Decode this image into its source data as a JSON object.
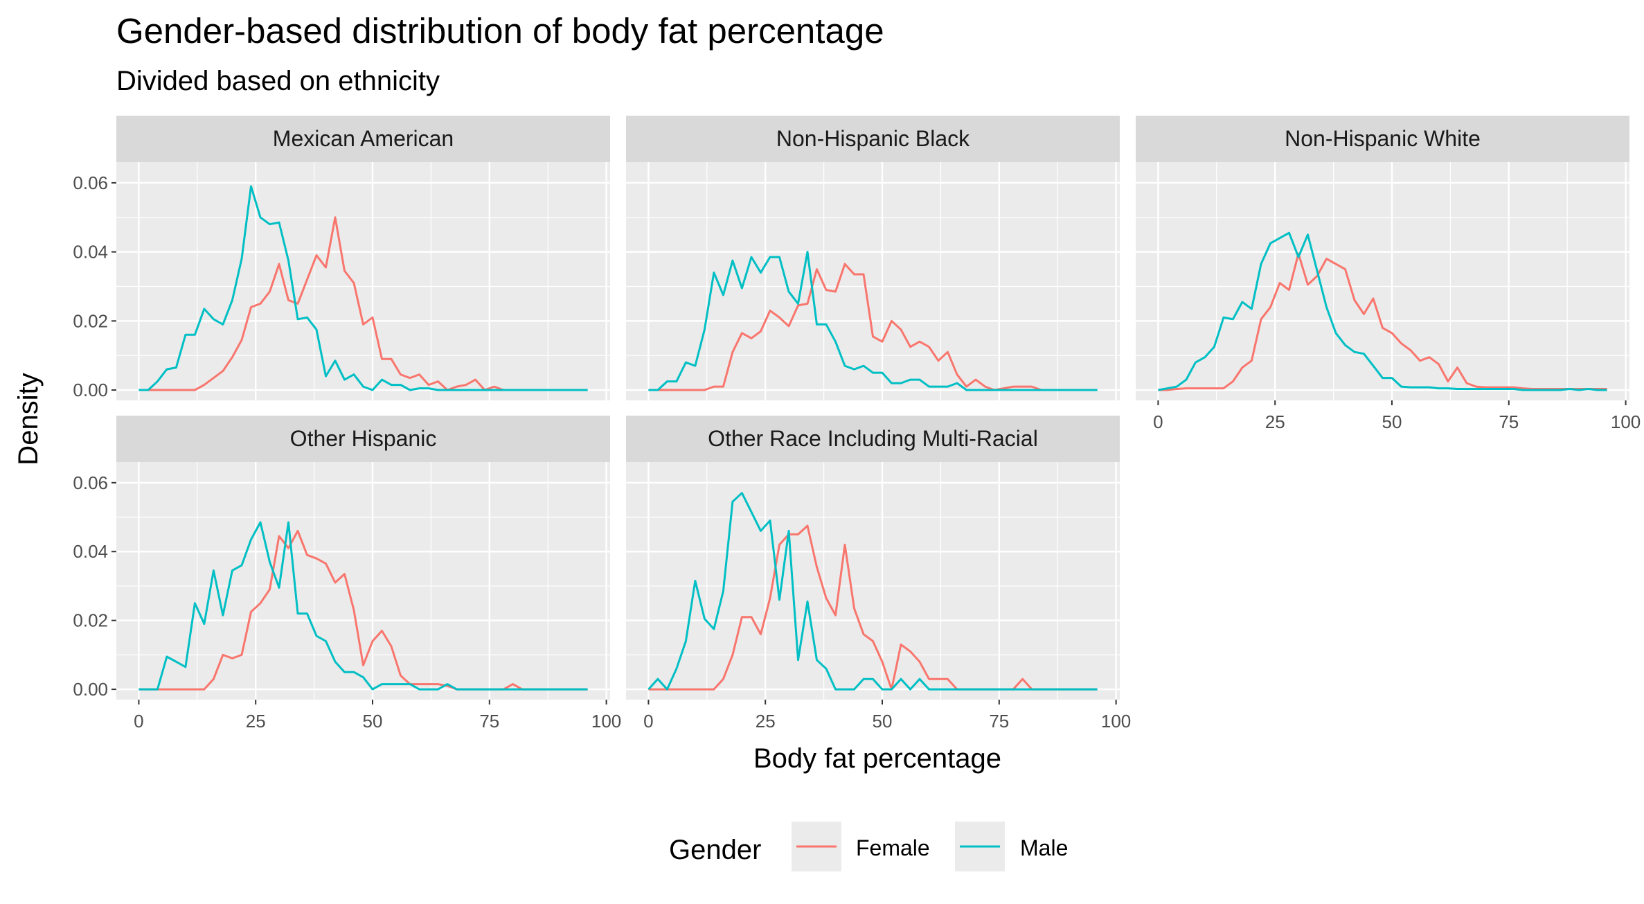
{
  "chart_data": {
    "type": "line",
    "title": "Gender-based distribution of body fat percentage",
    "subtitle": "Divided based on ethnicity",
    "xlabel": "Body fat percentage",
    "ylabel": "Density",
    "xlim": [
      0,
      100
    ],
    "ylim": [
      0,
      0.06
    ],
    "x_ticks": [
      0,
      25,
      50,
      75,
      100
    ],
    "x_tick_labels": [
      "0",
      "25",
      "50",
      "75",
      "100"
    ],
    "y_ticks": [
      0,
      0.02,
      0.04,
      0.06
    ],
    "y_tick_labels": [
      "0.00",
      "0.02",
      "0.04",
      "0.06"
    ],
    "grid": true,
    "legend": {
      "title": "Gender",
      "position": "bottom",
      "entries": [
        {
          "label": "Female",
          "color": "#F8766D"
        },
        {
          "label": "Male",
          "color": "#00BFC4"
        }
      ]
    },
    "x": [
      0,
      2,
      4,
      6,
      8,
      10,
      12,
      14,
      16,
      18,
      20,
      22,
      24,
      26,
      28,
      30,
      32,
      34,
      36,
      38,
      40,
      42,
      44,
      46,
      48,
      50,
      52,
      54,
      56,
      58,
      60,
      62,
      64,
      66,
      68,
      70,
      72,
      74,
      76,
      78,
      80,
      82,
      84,
      86,
      88,
      90,
      92,
      94,
      96
    ],
    "panels": [
      {
        "label": "Mexican American",
        "series": [
          {
            "name": "Female",
            "values": [
              0,
              0,
              0,
              0,
              0,
              0,
              0,
              0.0015,
              0.0035,
              0.0055,
              0.0095,
              0.0145,
              0.024,
              0.025,
              0.0285,
              0.0365,
              0.026,
              0.025,
              0.032,
              0.039,
              0.0355,
              0.05,
              0.0345,
              0.031,
              0.019,
              0.021,
              0.009,
              0.009,
              0.0045,
              0.0035,
              0.0045,
              0.0015,
              0.0025,
              0,
              0.001,
              0.0015,
              0.003,
              0,
              0.001,
              0,
              0,
              0,
              0,
              0,
              0,
              0,
              0,
              0,
              0
            ]
          },
          {
            "name": "Male",
            "values": [
              0,
              0,
              0.0025,
              0.006,
              0.0065,
              0.016,
              0.016,
              0.0235,
              0.0205,
              0.019,
              0.026,
              0.038,
              0.059,
              0.05,
              0.048,
              0.0485,
              0.0375,
              0.0205,
              0.021,
              0.0175,
              0.004,
              0.0085,
              0.003,
              0.0045,
              0.001,
              0,
              0.003,
              0.0015,
              0.0015,
              0,
              0.0005,
              0.0005,
              0,
              0,
              0,
              0,
              0,
              0,
              0,
              0,
              0,
              0,
              0,
              0,
              0,
              0,
              0,
              0,
              0
            ]
          }
        ]
      },
      {
        "label": "Non-Hispanic Black",
        "series": [
          {
            "name": "Female",
            "values": [
              0,
              0,
              0,
              0,
              0,
              0,
              0,
              0.001,
              0.001,
              0.011,
              0.0165,
              0.015,
              0.017,
              0.023,
              0.021,
              0.0185,
              0.0245,
              0.025,
              0.035,
              0.029,
              0.0285,
              0.0365,
              0.0335,
              0.0335,
              0.0155,
              0.014,
              0.02,
              0.0175,
              0.0125,
              0.014,
              0.0125,
              0.0085,
              0.011,
              0.0045,
              0.001,
              0.003,
              0.001,
              0,
              0.0005,
              0.001,
              0.001,
              0.001,
              0,
              0,
              0,
              0,
              0,
              0,
              0
            ]
          },
          {
            "name": "Male",
            "values": [
              0,
              0,
              0.0025,
              0.0025,
              0.008,
              0.007,
              0.0175,
              0.034,
              0.0275,
              0.0375,
              0.0295,
              0.0385,
              0.034,
              0.0385,
              0.0385,
              0.0285,
              0.025,
              0.04,
              0.019,
              0.019,
              0.014,
              0.007,
              0.006,
              0.007,
              0.005,
              0.005,
              0.002,
              0.002,
              0.003,
              0.003,
              0.001,
              0.001,
              0.001,
              0.002,
              0,
              0,
              0,
              0,
              0,
              0,
              0,
              0,
              0,
              0,
              0,
              0,
              0,
              0,
              0
            ]
          }
        ]
      },
      {
        "label": "Non-Hispanic White",
        "series": [
          {
            "name": "Female",
            "values": [
              0,
              0,
              0.0003,
              0.0005,
              0.0005,
              0.0005,
              0.0005,
              0.0005,
              0.0025,
              0.0065,
              0.0085,
              0.0205,
              0.024,
              0.031,
              0.029,
              0.0395,
              0.0305,
              0.033,
              0.038,
              0.0365,
              0.035,
              0.026,
              0.022,
              0.0265,
              0.018,
              0.0165,
              0.0135,
              0.0115,
              0.0085,
              0.0095,
              0.0075,
              0.0025,
              0.0065,
              0.002,
              0.001,
              0.0008,
              0.0008,
              0.0008,
              0.0008,
              0.0005,
              0.0003,
              0.0003,
              0.0003,
              0.0003,
              0.0003,
              0.0003,
              0.0003,
              0.0003,
              0.0003
            ]
          },
          {
            "name": "Male",
            "values": [
              0,
              0.0005,
              0.001,
              0.003,
              0.008,
              0.0095,
              0.0125,
              0.021,
              0.0205,
              0.0255,
              0.0235,
              0.0365,
              0.0425,
              0.044,
              0.0455,
              0.0385,
              0.045,
              0.0345,
              0.024,
              0.0165,
              0.013,
              0.011,
              0.0105,
              0.007,
              0.0035,
              0.0035,
              0.001,
              0.0008,
              0.0008,
              0.0008,
              0.0005,
              0.0005,
              0.0003,
              0.0003,
              0.0003,
              0.0003,
              0.0003,
              0.0003,
              0.0003,
              0,
              0,
              0,
              0,
              0,
              0.0003,
              0,
              0.0003,
              0,
              0
            ]
          }
        ]
      },
      {
        "label": "Other Hispanic",
        "series": [
          {
            "name": "Female",
            "values": [
              0,
              0,
              0,
              0,
              0,
              0,
              0,
              0,
              0.003,
              0.01,
              0.009,
              0.01,
              0.0225,
              0.025,
              0.029,
              0.0445,
              0.041,
              0.046,
              0.039,
              0.038,
              0.0365,
              0.031,
              0.0335,
              0.023,
              0.007,
              0.014,
              0.017,
              0.0125,
              0.004,
              0.0015,
              0.0015,
              0.0015,
              0.0015,
              0.001,
              0,
              0,
              0,
              0,
              0,
              0,
              0.0015,
              0,
              0,
              0,
              0,
              0,
              0,
              0,
              0
            ]
          },
          {
            "name": "Male",
            "values": [
              0,
              0,
              0,
              0.0095,
              0.008,
              0.0065,
              0.025,
              0.019,
              0.0345,
              0.0215,
              0.0345,
              0.036,
              0.0435,
              0.0485,
              0.037,
              0.0295,
              0.0485,
              0.022,
              0.022,
              0.0155,
              0.014,
              0.008,
              0.005,
              0.005,
              0.0035,
              0,
              0.0015,
              0.0015,
              0.0015,
              0.0015,
              0,
              0,
              0,
              0.0015,
              0,
              0,
              0,
              0,
              0,
              0,
              0,
              0,
              0,
              0,
              0,
              0,
              0,
              0,
              0
            ]
          }
        ]
      },
      {
        "label": "Other Race Including Multi-Racial",
        "series": [
          {
            "name": "Female",
            "values": [
              0,
              0,
              0,
              0,
              0,
              0,
              0,
              0,
              0.003,
              0.01,
              0.021,
              0.021,
              0.016,
              0.0265,
              0.042,
              0.045,
              0.045,
              0.0475,
              0.0355,
              0.0265,
              0.0215,
              0.042,
              0.0235,
              0.016,
              0.014,
              0.008,
              0,
              0.013,
              0.011,
              0.008,
              0.003,
              0.003,
              0.003,
              0,
              0,
              0,
              0,
              0,
              0,
              0,
              0.003,
              0,
              0,
              0,
              0,
              0,
              0,
              0,
              0
            ]
          },
          {
            "name": "Male",
            "values": [
              0,
              0.003,
              0,
              0.006,
              0.014,
              0.0315,
              0.0205,
              0.0175,
              0.0285,
              0.0545,
              0.057,
              0.0515,
              0.046,
              0.049,
              0.026,
              0.046,
              0.0085,
              0.0255,
              0.0085,
              0.006,
              0,
              0,
              0,
              0.003,
              0.003,
              0,
              0,
              0.003,
              0,
              0.003,
              0,
              0,
              0,
              0,
              0,
              0,
              0,
              0,
              0,
              0,
              0,
              0,
              0,
              0,
              0,
              0,
              0,
              0,
              0
            ]
          }
        ]
      }
    ]
  }
}
